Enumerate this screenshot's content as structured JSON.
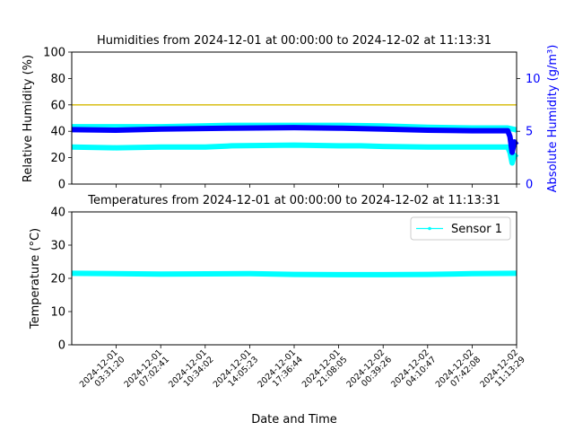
{
  "chart_data": [
    {
      "type": "line",
      "title": "Humidities from 2024-12-01 at 00:00:00 to 2024-12-02 at 11:13:31",
      "ylabel": "Relative Humidity (%)",
      "ylim": [
        0,
        100
      ],
      "yticks": [
        "0",
        "20",
        "40",
        "60",
        "80",
        "100"
      ],
      "y2label": "Absolute Humidity (g/m³)",
      "y2lim": [
        0,
        12.5
      ],
      "y2ticks": [
        "0",
        "5",
        "10"
      ],
      "y2_color": "#0000ff",
      "reference_line": {
        "y": 60,
        "color": "#d4b800"
      },
      "x_range": [
        0,
        1
      ],
      "series": [
        {
          "axis": "left",
          "color": "#00ffff",
          "width": 6,
          "x": [
            0.0,
            0.1,
            0.2,
            0.3,
            0.36,
            0.5,
            0.6,
            0.65,
            0.7,
            0.8,
            0.9,
            0.98,
            0.985,
            0.99,
            0.995,
            1.0
          ],
          "y": [
            28,
            27.5,
            28,
            28,
            29,
            29.5,
            29,
            29,
            28.5,
            28,
            28,
            28,
            24,
            16,
            22,
            20
          ]
        },
        {
          "axis": "left",
          "color": "#00ffff",
          "width": 6,
          "x": [
            0.0,
            0.2,
            0.36,
            0.5,
            0.6,
            0.7,
            0.8,
            0.9,
            0.98,
            1.0
          ],
          "y": [
            43.5,
            43.5,
            44.5,
            44.5,
            44.5,
            44,
            43,
            42.5,
            42.5,
            41
          ]
        },
        {
          "axis": "right",
          "color": "#0000ff",
          "width": 6,
          "x": [
            0.0,
            0.1,
            0.2,
            0.36,
            0.5,
            0.6,
            0.7,
            0.8,
            0.9,
            0.98,
            0.985,
            0.99,
            0.995,
            1.0
          ],
          "y": [
            5.15,
            5.1,
            5.2,
            5.3,
            5.35,
            5.3,
            5.2,
            5.1,
            5.05,
            5.05,
            4.5,
            3.0,
            4.0,
            3.7
          ]
        }
      ]
    },
    {
      "type": "line",
      "title": "Temperatures from 2024-12-01 at 00:00:00 to 2024-12-02 at 11:13:31",
      "ylabel": "Temperature (°C)",
      "ylim": [
        0,
        40
      ],
      "yticks": [
        "0",
        "10",
        "20",
        "30",
        "40"
      ],
      "xlabel": "Date and Time",
      "x_range": [
        0,
        1
      ],
      "xticks": [
        {
          "pos": 0.1,
          "date": "2024-12-01",
          "time": "03:31:20"
        },
        {
          "pos": 0.2,
          "date": "2024-12-01",
          "time": "07:02:41"
        },
        {
          "pos": 0.3,
          "date": "2024-12-01",
          "time": "10:34:02"
        },
        {
          "pos": 0.4,
          "date": "2024-12-01",
          "time": "14:05:23"
        },
        {
          "pos": 0.5,
          "date": "2024-12-01",
          "time": "17:36:44"
        },
        {
          "pos": 0.6,
          "date": "2024-12-01",
          "time": "21:08:05"
        },
        {
          "pos": 0.7,
          "date": "2024-12-02",
          "time": "00:39:26"
        },
        {
          "pos": 0.8,
          "date": "2024-12-02",
          "time": "04:10:47"
        },
        {
          "pos": 0.9,
          "date": "2024-12-02",
          "time": "07:42:08"
        },
        {
          "pos": 1.0,
          "date": "2024-12-02",
          "time": "11:13:29"
        }
      ],
      "legend": {
        "placement": "top-right",
        "entries": [
          "Sensor 1"
        ]
      },
      "series": [
        {
          "name": "Sensor 1",
          "color": "#00ffff",
          "width": 6,
          "x": [
            0.0,
            0.2,
            0.4,
            0.5,
            0.6,
            0.7,
            0.8,
            0.9,
            1.0
          ],
          "y": [
            21.5,
            21.3,
            21.4,
            21.2,
            21.1,
            21.1,
            21.2,
            21.4,
            21.5
          ]
        }
      ]
    }
  ]
}
